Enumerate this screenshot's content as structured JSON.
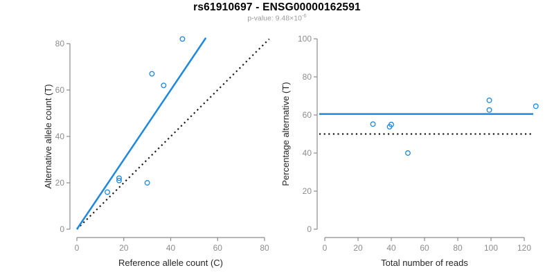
{
  "header": {
    "title": "rs61910697 - ENSG00000162591",
    "subtitle_prefix": "p-value: 9.48×10",
    "subtitle_exponent": "-6"
  },
  "colors": {
    "accent_blue": "#1E87E0",
    "line_black": "#1A1A1A",
    "axis_gray": "#8C8C8C",
    "tick_label_gray": "#8C8C8C",
    "axis_title_color": "#262626"
  },
  "chart_data": [
    {
      "type": "scatter",
      "name": "allele-counts-panel",
      "xlabel": "Reference allele count (C)",
      "ylabel": "Alternative allele count (T)",
      "xlim": [
        0,
        80
      ],
      "ylim": [
        0,
        80
      ],
      "xticks": [
        0,
        20,
        40,
        60,
        80
      ],
      "yticks": [
        0,
        20,
        40,
        60,
        80
      ],
      "grid": false,
      "points": [
        [
          13,
          16
        ],
        [
          18,
          21
        ],
        [
          18,
          22
        ],
        [
          30,
          20
        ],
        [
          32,
          67
        ],
        [
          37,
          62
        ],
        [
          45,
          82
        ]
      ],
      "lines": [
        {
          "name": "identity-line",
          "style": "dotted",
          "color": "black",
          "from": [
            0,
            0
          ],
          "to": [
            82,
            82
          ]
        },
        {
          "name": "fit-line",
          "style": "solid",
          "color": "blue",
          "from": [
            0,
            0
          ],
          "to": [
            55,
            82.5
          ]
        }
      ]
    },
    {
      "type": "scatter",
      "name": "percentage-panel",
      "xlabel": "Total number of reads",
      "ylabel": "Percentage alternative (T)",
      "xlim": [
        0,
        120
      ],
      "ylim": [
        0,
        100
      ],
      "xticks": [
        0,
        20,
        40,
        60,
        80,
        100,
        120
      ],
      "yticks": [
        0,
        20,
        40,
        60,
        80,
        100
      ],
      "grid": false,
      "points": [
        [
          29,
          55.2
        ],
        [
          39,
          53.8
        ],
        [
          40,
          55.0
        ],
        [
          50,
          40.0
        ],
        [
          99,
          67.7
        ],
        [
          99,
          62.6
        ],
        [
          127,
          64.6
        ]
      ],
      "lines": [
        {
          "name": "fifty-percent-line",
          "style": "dotted",
          "color": "black",
          "y": 50
        },
        {
          "name": "mean-percentage-line",
          "style": "solid",
          "color": "blue",
          "y": 60.5
        }
      ]
    }
  ]
}
